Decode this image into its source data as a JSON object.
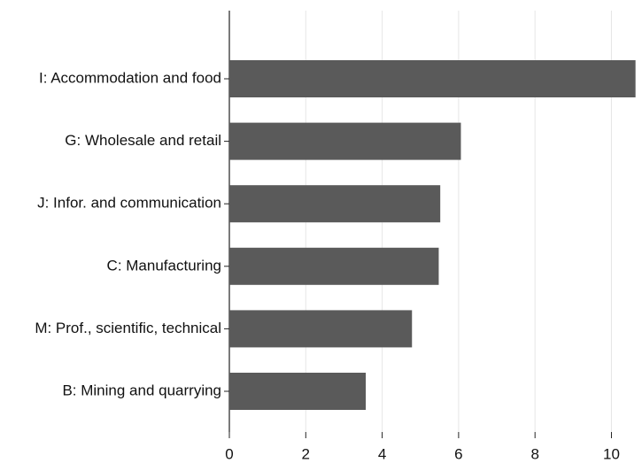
{
  "chart_data": {
    "type": "barh",
    "categories": [
      "I: Accommodation and food",
      "G: Wholesale and retail",
      "J: Infor. and communication",
      "C: Manufacturing",
      "M: Prof., scientific, technical",
      "B: Mining and quarrying"
    ],
    "values": [
      10.63,
      6.06,
      5.52,
      5.48,
      4.78,
      3.57
    ],
    "color": "#5a5a5a",
    "xlim": [
      0,
      10.8
    ],
    "xticks": [
      0,
      2,
      4,
      6,
      8,
      10
    ],
    "grid": true
  }
}
